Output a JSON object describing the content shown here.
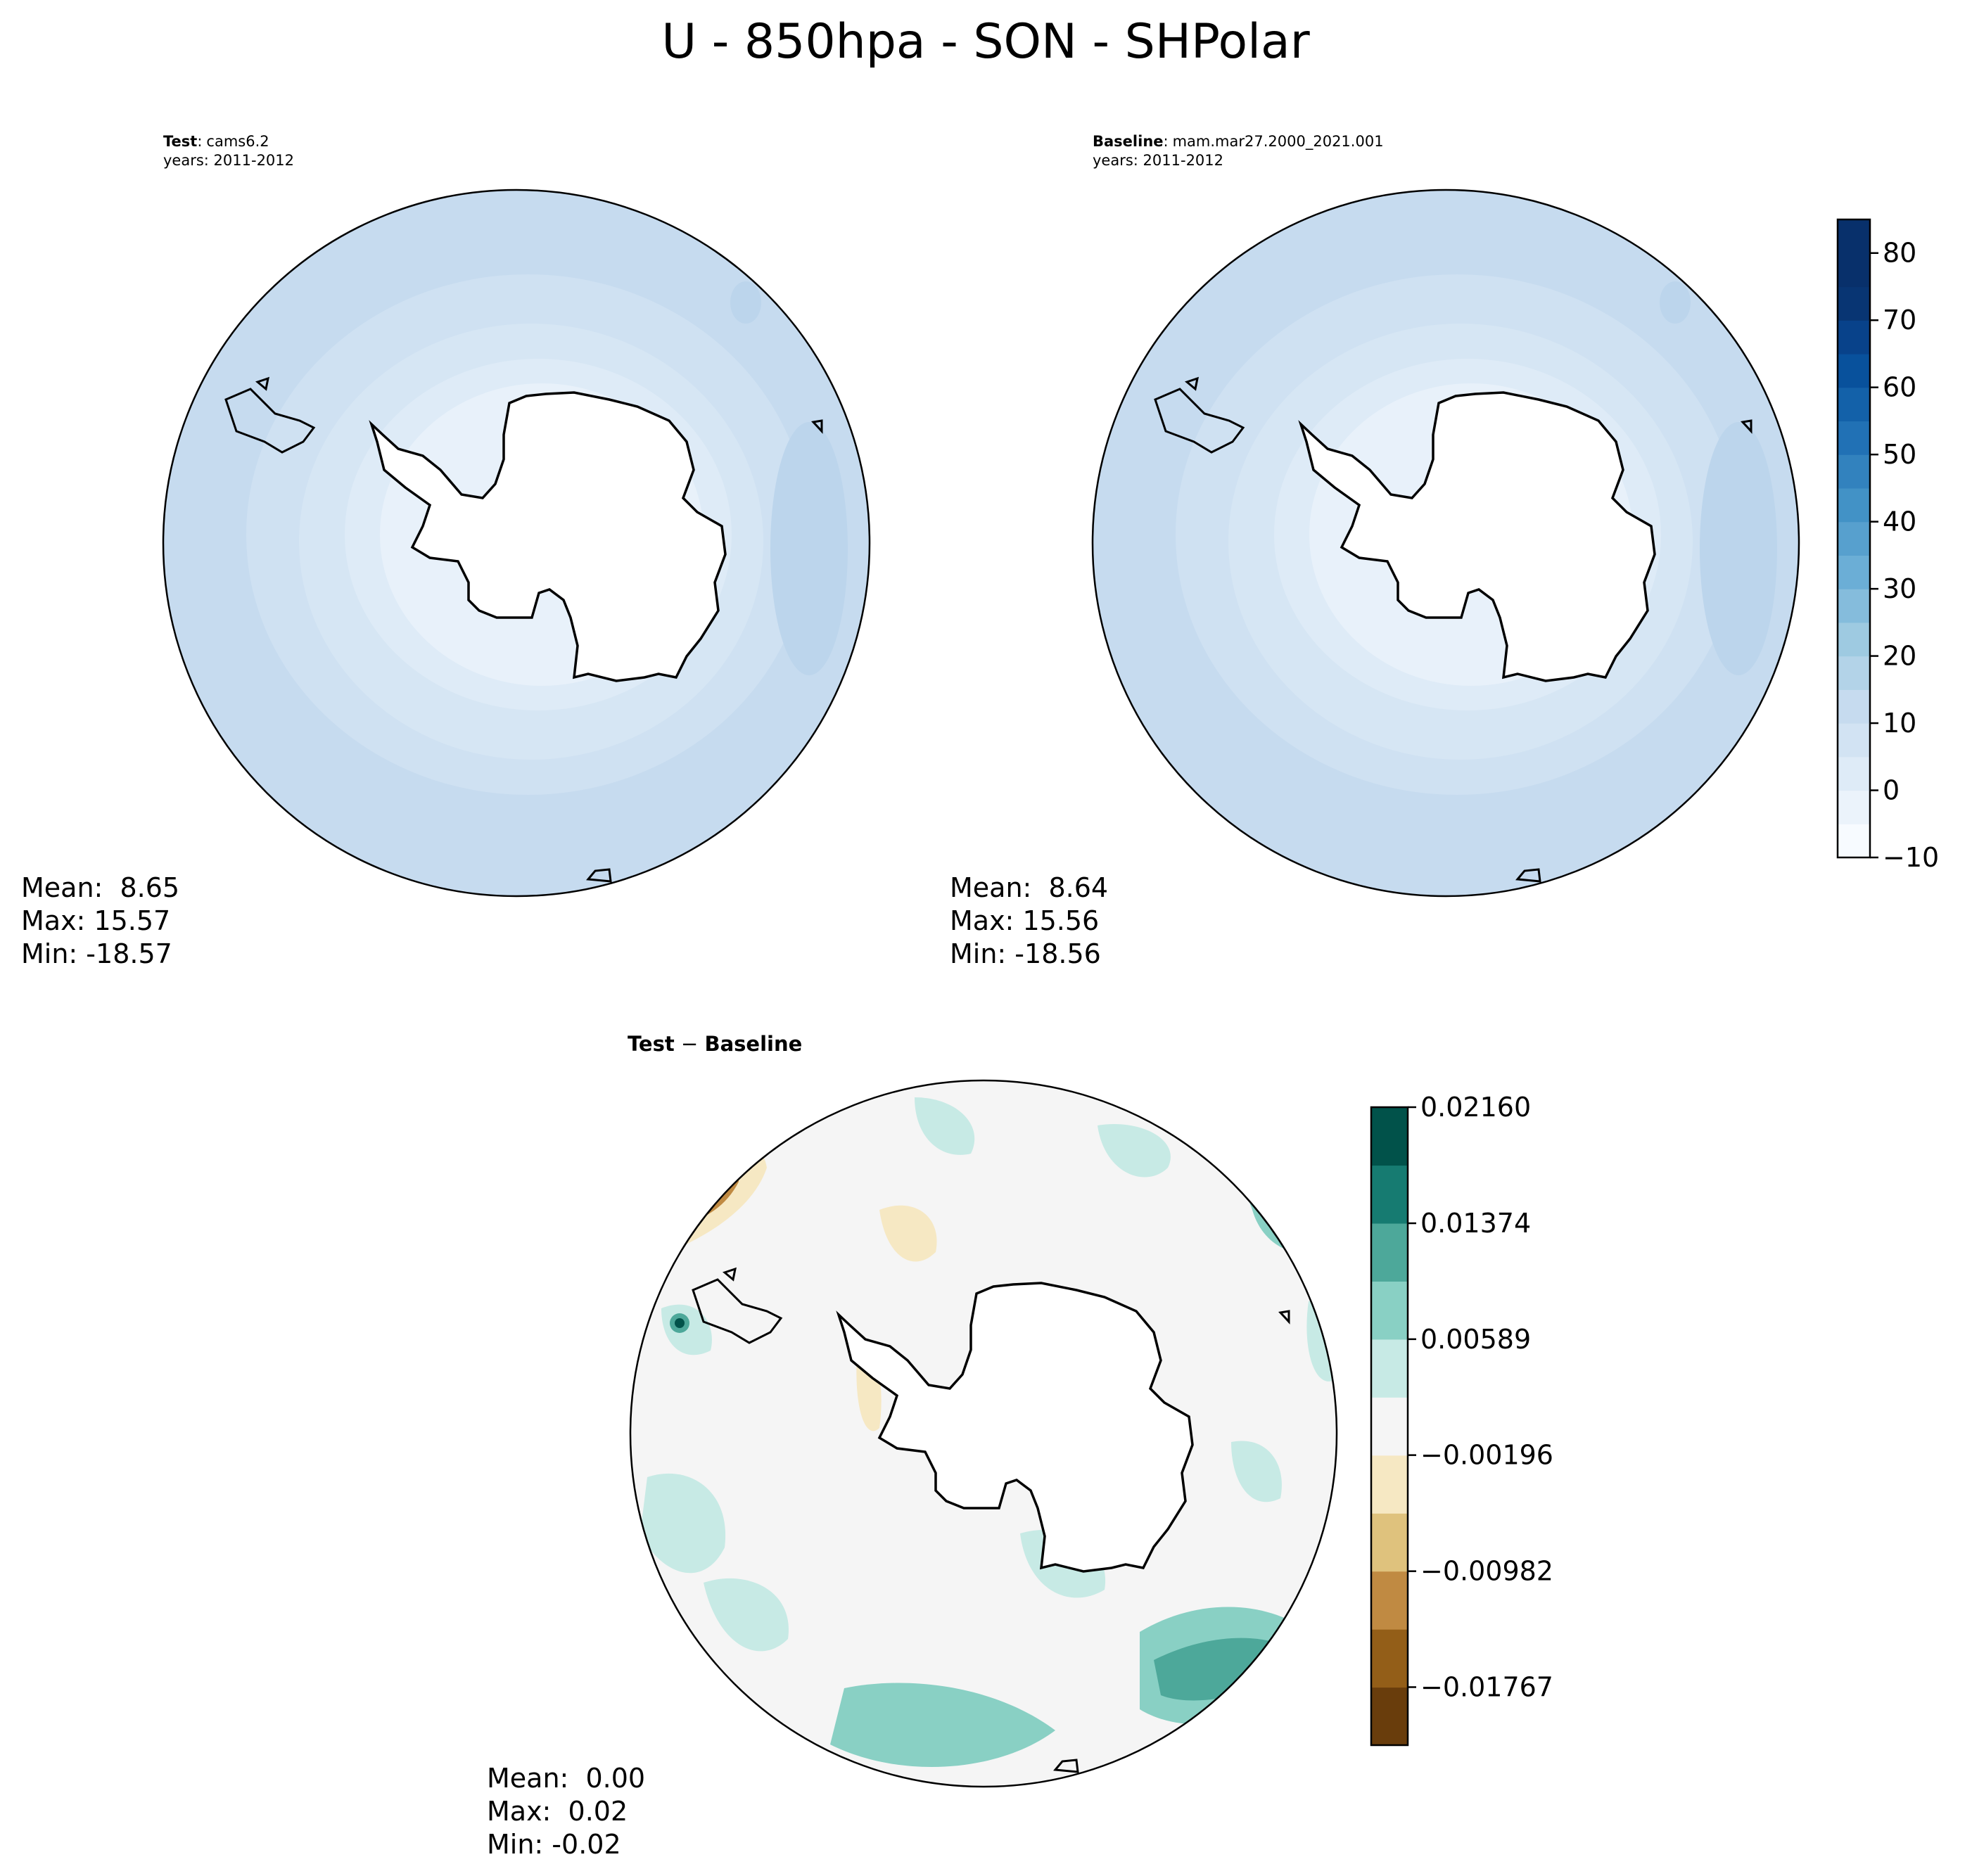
{
  "figure": {
    "suptitle": "U - 850hpa - SON - SHPolar"
  },
  "chart_data": [
    {
      "type": "heatmap",
      "panel": "test",
      "label_bold": "Test",
      "label_sep": ":",
      "label_value": "cams6.2",
      "years": "years: 2011-2012",
      "stats": {
        "mean": "Mean:  8.65",
        "max": "Max: 15.57",
        "min": "Min: -18.57"
      },
      "projection": "south polar stereographic",
      "colormap": "Blues"
    },
    {
      "type": "heatmap",
      "panel": "baseline",
      "label_bold": "Baseline",
      "label_sep": ":",
      "label_value": "mam.mar27.2000_2021.001",
      "years": "years: 2011-2012",
      "stats": {
        "mean": "Mean:  8.64",
        "max": "Max: 15.56",
        "min": "Min: -18.56"
      },
      "projection": "south polar stereographic",
      "colormap": "Blues",
      "colorbar": {
        "levels": [
          -10,
          -5,
          0,
          5,
          10,
          15,
          20,
          25,
          30,
          35,
          40,
          45,
          50,
          55,
          60,
          65,
          70,
          75,
          80,
          85
        ],
        "ticks": [
          "−10",
          "0",
          "10",
          "20",
          "30",
          "40",
          "50",
          "60",
          "70",
          "80"
        ],
        "tick_values": [
          -10,
          0,
          10,
          20,
          30,
          40,
          50,
          60,
          70,
          80
        ],
        "range": [
          -10,
          85
        ],
        "colors": [
          "#f7fbff",
          "#ebf3fb",
          "#deebf7",
          "#d2e3f3",
          "#c6dbef",
          "#b3d3e8",
          "#9ecae1",
          "#85bcdc",
          "#6baed6",
          "#57a0ce",
          "#4292c6",
          "#3282be",
          "#2171b5",
          "#1361a9",
          "#08519c",
          "#08428a",
          "#083573",
          "#08306b",
          "#08306b"
        ]
      }
    },
    {
      "type": "heatmap",
      "panel": "difference",
      "label_bold": "Test",
      "label_sep": " − ",
      "label_value": "Baseline",
      "stats": {
        "mean": "Mean:  0.00",
        "max": "Max:  0.02",
        "min": "Min: -0.02"
      },
      "projection": "south polar stereographic",
      "colormap": "BrBG",
      "colorbar": {
        "ticks": [
          "0.02160",
          "0.01374",
          "0.00589",
          "−0.00196",
          "−0.00982",
          "−0.01767"
        ],
        "tick_values": [
          0.0216,
          0.01374,
          0.00589,
          -0.00196,
          -0.00982,
          -0.01767
        ],
        "range": [
          -0.0216,
          0.0216
        ],
        "colors": [
          "#693d0c",
          "#935e18",
          "#c08a42",
          "#dfc27d",
          "#f6e8c3",
          "#f5f5f5",
          "#c7eae5",
          "#89d0c4",
          "#4da89a",
          "#167b71",
          "#01524a"
        ]
      }
    }
  ]
}
